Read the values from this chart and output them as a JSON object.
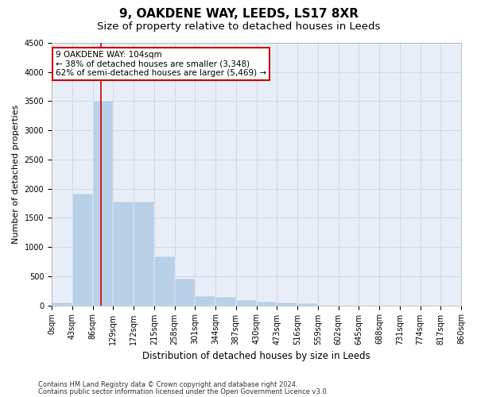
{
  "title1": "9, OAKDENE WAY, LEEDS, LS17 8XR",
  "title2": "Size of property relative to detached houses in Leeds",
  "xlabel": "Distribution of detached houses by size in Leeds",
  "ylabel": "Number of detached properties",
  "bar_color": "#b8d0e8",
  "bar_edgecolor": "#b8d0e8",
  "grid_color": "#cccccc",
  "bg_color": "#e8eef8",
  "bin_edges": [
    0,
    43,
    86,
    129,
    172,
    215,
    258,
    301,
    344,
    387,
    430,
    473,
    516,
    559,
    602,
    645,
    688,
    731,
    774,
    817,
    860
  ],
  "bar_heights": [
    45,
    1920,
    3500,
    1780,
    1780,
    840,
    455,
    155,
    145,
    90,
    65,
    55,
    35,
    0,
    0,
    0,
    0,
    0,
    0,
    0
  ],
  "property_size": 104,
  "vline_color": "#cc0000",
  "annotation_box_color": "#cc0000",
  "annotation_line1": "9 OAKDENE WAY: 104sqm",
  "annotation_line2": "← 38% of detached houses are smaller (3,348)",
  "annotation_line3": "62% of semi-detached houses are larger (5,469) →",
  "ylim": [
    0,
    4500
  ],
  "yticks": [
    0,
    500,
    1000,
    1500,
    2000,
    2500,
    3000,
    3500,
    4000,
    4500
  ],
  "footnote1": "Contains HM Land Registry data © Crown copyright and database right 2024.",
  "footnote2": "Contains public sector information licensed under the Open Government Licence v3.0.",
  "title1_fontsize": 11,
  "title2_fontsize": 9.5,
  "xlabel_fontsize": 8.5,
  "ylabel_fontsize": 8,
  "tick_fontsize": 7,
  "annot_fontsize": 7.5,
  "footnote_fontsize": 6
}
